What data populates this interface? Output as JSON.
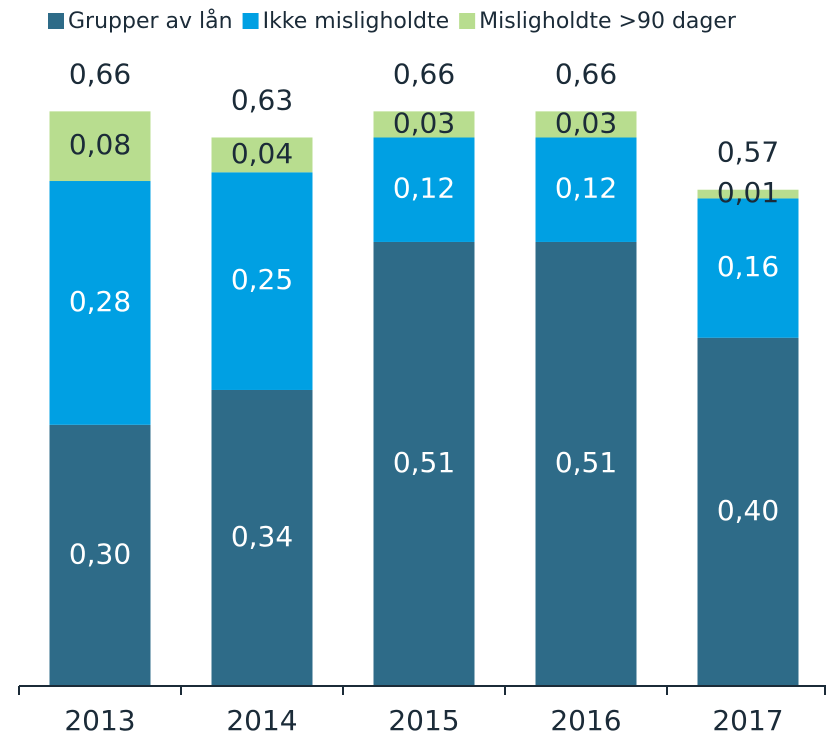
{
  "chart_data": {
    "type": "stacked-bar",
    "categories": [
      "2013",
      "2014",
      "2015",
      "2016",
      "2017"
    ],
    "series": [
      {
        "name": "Grupper av lån",
        "color": "#2e6b88",
        "values": [
          0.3,
          0.34,
          0.51,
          0.51,
          0.4
        ],
        "value_labels": [
          "0,30",
          "0,34",
          "0,51",
          "0,51",
          "0,40"
        ]
      },
      {
        "name": "Ikke misligholdte",
        "color": "#00a0e3",
        "values": [
          0.28,
          0.25,
          0.12,
          0.12,
          0.16
        ],
        "value_labels": [
          "0,28",
          "0,25",
          "0,12",
          "0,12",
          "0,16"
        ]
      },
      {
        "name": "Misligholdte >90 dager",
        "color": "#b8dd8f",
        "values": [
          0.08,
          0.04,
          0.03,
          0.03,
          0.01
        ],
        "value_labels": [
          "0,08",
          "0,04",
          "0,03",
          "0,03",
          "0,01"
        ]
      }
    ],
    "totals": [
      0.66,
      0.63,
      0.66,
      0.66,
      0.57
    ],
    "total_labels": [
      "0,66",
      "0,63",
      "0,66",
      "0,66",
      "0,57"
    ],
    "ylim": [
      0,
      0.75
    ],
    "legend": "top"
  }
}
